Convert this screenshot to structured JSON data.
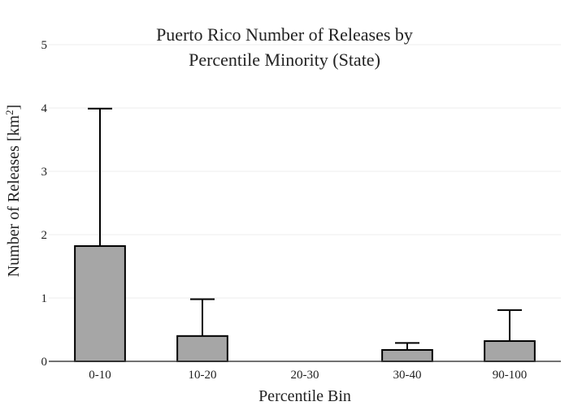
{
  "chart_data": {
    "type": "bar",
    "title_lines": [
      "Puerto Rico Number of Releases by",
      "Percentile Minority (State)"
    ],
    "xlabel": "Percentile Bin",
    "ylabel": "Number of Releases  [km",
    "ylabel_superscript": "2",
    "ylabel_close": "]",
    "ylim": [
      0,
      5
    ],
    "yticks": [
      0,
      1,
      2,
      3,
      4,
      5
    ],
    "categories": [
      "0-10",
      "10-20",
      "20-30",
      "30-40",
      "90-100"
    ],
    "values": [
      1.82,
      0.4,
      0.0,
      0.18,
      0.32
    ],
    "error_upper": [
      3.99,
      0.98,
      0.0,
      0.29,
      0.81
    ],
    "grid": "horizontal",
    "bar_color": "#a6a6a6",
    "bar_edge_color": "#000000",
    "grid_color": "#eeeeee"
  }
}
